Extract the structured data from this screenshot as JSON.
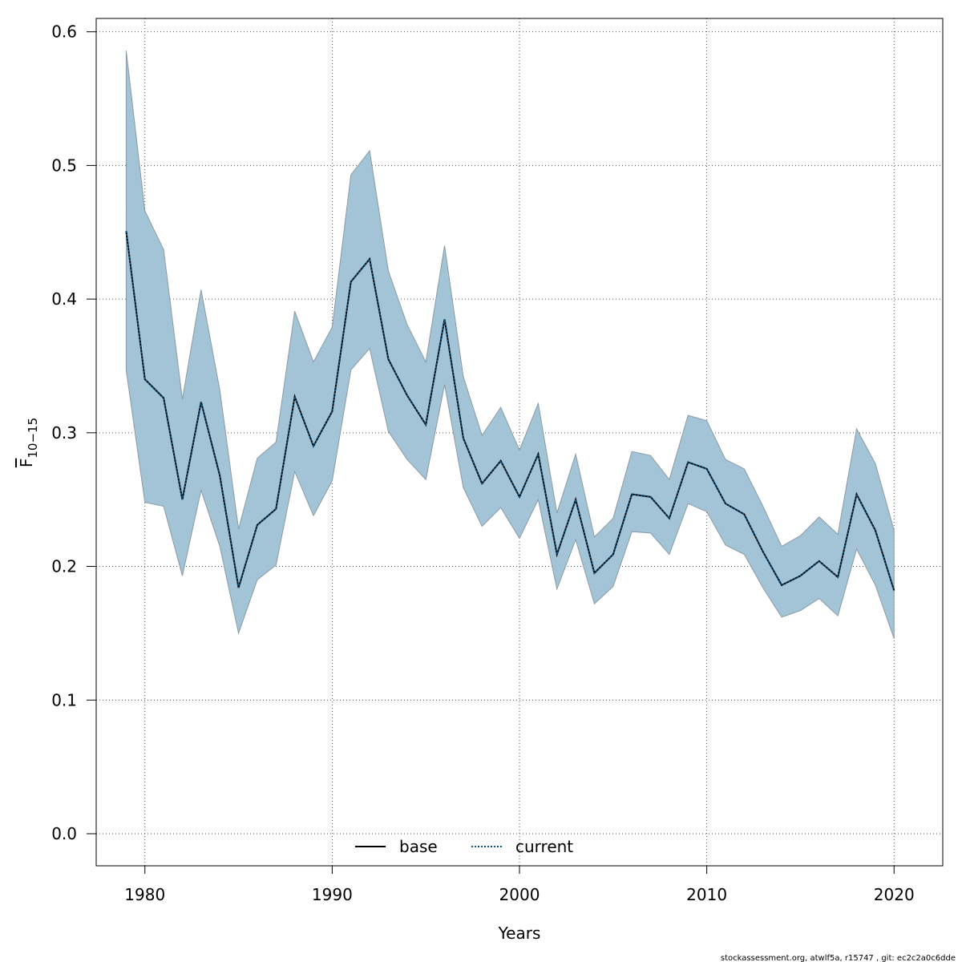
{
  "chart_data": {
    "type": "line",
    "xlabel": "Years",
    "ylabel": {
      "main": "F",
      "subscript": "10−15"
    },
    "xlim": [
      1977.4,
      2022.6
    ],
    "ylim": [
      -0.024,
      0.61
    ],
    "xticks": [
      1980,
      1990,
      2000,
      2010,
      2020
    ],
    "yticks": [
      "0.0",
      "0.1",
      "0.2",
      "0.3",
      "0.4",
      "0.5",
      "0.6"
    ],
    "grid": true,
    "legend": {
      "position": "bottom-center",
      "entries": [
        {
          "label": "base",
          "style": "solid",
          "color": "#000000"
        },
        {
          "label": "current",
          "style": "dotted",
          "color": "#0a5a8a"
        }
      ]
    },
    "band_color": "#a3c4d6",
    "band_edge_color": "#8a9ba6",
    "x": [
      1979,
      1980,
      1981,
      1982,
      1983,
      1984,
      1985,
      1986,
      1987,
      1988,
      1989,
      1990,
      1991,
      1992,
      1993,
      1994,
      1995,
      1996,
      1997,
      1998,
      1999,
      2000,
      2001,
      2002,
      2003,
      2004,
      2005,
      2006,
      2007,
      2008,
      2009,
      2010,
      2011,
      2012,
      2013,
      2014,
      2015,
      2016,
      2017,
      2018,
      2019,
      2020
    ],
    "series": [
      {
        "name": "base",
        "values": [
          0.451,
          0.34,
          0.326,
          0.25,
          0.323,
          0.268,
          0.184,
          0.231,
          0.243,
          0.327,
          0.29,
          0.316,
          0.413,
          0.43,
          0.355,
          0.328,
          0.306,
          0.385,
          0.296,
          0.262,
          0.279,
          0.252,
          0.284,
          0.209,
          0.25,
          0.195,
          0.209,
          0.254,
          0.252,
          0.236,
          0.278,
          0.273,
          0.247,
          0.239,
          0.211,
          0.186,
          0.193,
          0.204,
          0.192,
          0.254,
          0.227,
          0.182
        ]
      },
      {
        "name": "current",
        "values": [
          0.451,
          0.34,
          0.326,
          0.25,
          0.323,
          0.268,
          0.184,
          0.231,
          0.243,
          0.327,
          0.29,
          0.316,
          0.413,
          0.43,
          0.355,
          0.328,
          0.306,
          0.385,
          0.296,
          0.262,
          0.279,
          0.252,
          0.284,
          0.209,
          0.25,
          0.195,
          0.209,
          0.254,
          0.252,
          0.236,
          0.278,
          0.273,
          0.247,
          0.239,
          0.211,
          0.186,
          0.193,
          0.204,
          0.192,
          0.254,
          0.227,
          0.182
        ]
      }
    ],
    "band_upper": [
      0.586,
      0.466,
      0.437,
      0.325,
      0.407,
      0.332,
      0.228,
      0.281,
      0.293,
      0.391,
      0.353,
      0.379,
      0.493,
      0.511,
      0.421,
      0.381,
      0.353,
      0.44,
      0.342,
      0.298,
      0.319,
      0.287,
      0.322,
      0.24,
      0.284,
      0.222,
      0.236,
      0.286,
      0.283,
      0.265,
      0.313,
      0.309,
      0.28,
      0.273,
      0.245,
      0.215,
      0.223,
      0.237,
      0.224,
      0.303,
      0.277,
      0.227
    ],
    "band_lower": [
      0.347,
      0.248,
      0.245,
      0.193,
      0.257,
      0.215,
      0.15,
      0.19,
      0.201,
      0.271,
      0.238,
      0.264,
      0.347,
      0.363,
      0.301,
      0.28,
      0.265,
      0.336,
      0.259,
      0.23,
      0.244,
      0.221,
      0.25,
      0.183,
      0.22,
      0.172,
      0.185,
      0.226,
      0.225,
      0.209,
      0.247,
      0.241,
      0.216,
      0.209,
      0.184,
      0.162,
      0.167,
      0.176,
      0.163,
      0.213,
      0.186,
      0.146
    ]
  },
  "footer": "stockassessment.org, atwlf5a, r15747 , git: ec2c2a0c6dde"
}
